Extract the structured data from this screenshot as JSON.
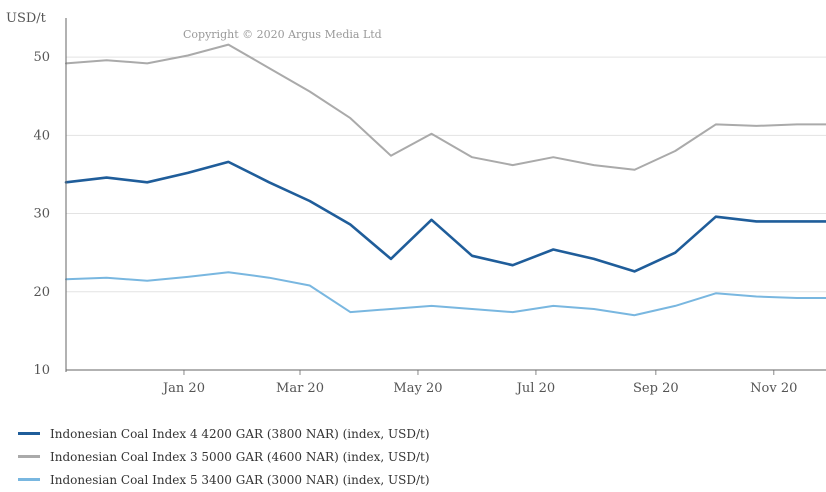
{
  "chart_data": {
    "type": "line",
    "ylabel": "USD/t",
    "copyright": "Copyright © 2020 Argus Media Ltd",
    "ylim": [
      10,
      55
    ],
    "yticks": [
      10,
      20,
      30,
      40,
      50
    ],
    "xlim": [
      "2019-11-01",
      "2020-11-28"
    ],
    "xticks": [
      {
        "label": "Jan 20",
        "date": "2020-01-01"
      },
      {
        "label": "Mar 20",
        "date": "2020-03-01"
      },
      {
        "label": "May 20",
        "date": "2020-05-01"
      },
      {
        "label": "Jul 20",
        "date": "2020-07-01"
      },
      {
        "label": "Sep 20",
        "date": "2020-09-01"
      },
      {
        "label": "Nov 20",
        "date": "2020-11-01"
      }
    ],
    "grid": "horizontal",
    "legend_position": "bottom",
    "x": [
      "2019-11-01",
      "2019-11-22",
      "2019-12-13",
      "2020-01-03",
      "2020-01-24",
      "2020-02-14",
      "2020-03-06",
      "2020-03-27",
      "2020-04-17",
      "2020-05-08",
      "2020-05-29",
      "2020-06-19",
      "2020-07-10",
      "2020-07-31",
      "2020-08-21",
      "2020-09-11",
      "2020-10-02",
      "2020-10-23",
      "2020-11-13",
      "2020-11-28"
    ],
    "series": [
      {
        "name": "Indonesian Coal Index 4 4200 GAR (3800 NAR) (index, USD/t)",
        "color": "#1f5d9a",
        "values": [
          34.0,
          34.6,
          34.0,
          35.2,
          36.6,
          34.0,
          31.6,
          28.6,
          24.2,
          29.2,
          24.6,
          23.4,
          25.4,
          24.2,
          22.6,
          25.0,
          29.6,
          29.0,
          29.0,
          29.0
        ]
      },
      {
        "name": "Indonesian Coal Index 3 5000 GAR (4600 NAR) (index, USD/t)",
        "color": "#aaaaaa",
        "values": [
          49.2,
          49.6,
          49.2,
          50.2,
          51.6,
          48.6,
          45.6,
          42.2,
          37.4,
          40.2,
          37.2,
          36.2,
          37.2,
          36.2,
          35.6,
          38.0,
          41.4,
          41.2,
          41.4,
          41.4
        ]
      },
      {
        "name": "Indonesian Coal Index 5 3400 GAR (3000 NAR) (index, USD/t)",
        "color": "#79b7e0",
        "values": [
          21.6,
          21.8,
          21.4,
          21.9,
          22.5,
          21.8,
          20.8,
          17.4,
          17.8,
          18.2,
          17.8,
          17.4,
          18.2,
          17.8,
          17.0,
          18.2,
          19.8,
          19.4,
          19.2,
          19.2
        ]
      }
    ]
  }
}
